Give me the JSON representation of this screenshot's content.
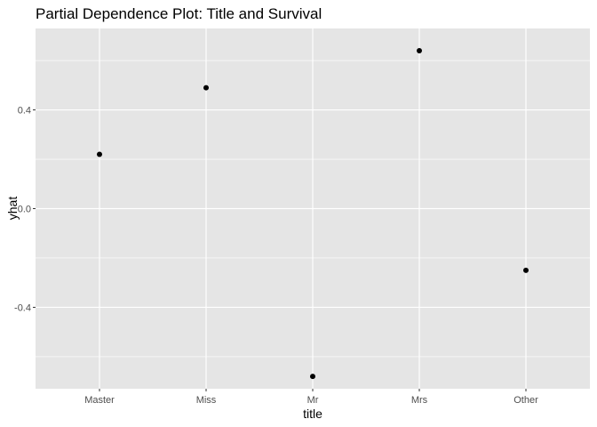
{
  "chart_data": {
    "type": "scatter",
    "title": "Partial Dependence Plot: Title and Survival",
    "xlabel": "title",
    "ylabel": "yhat",
    "categories": [
      "Master",
      "Miss",
      "Mr",
      "Mrs",
      "Other"
    ],
    "values": [
      0.22,
      0.49,
      -0.68,
      0.64,
      -0.25
    ],
    "ylim": [
      -0.73,
      0.73
    ],
    "yticks": [
      0.4,
      0.0,
      -0.4
    ],
    "ytick_labels": [
      "0.4",
      "0.0",
      "-0.4"
    ],
    "grid": true,
    "legend": "none",
    "colors": {
      "panel": "#e5e5e5",
      "grid": "#ffffff",
      "point": "#000000"
    }
  }
}
